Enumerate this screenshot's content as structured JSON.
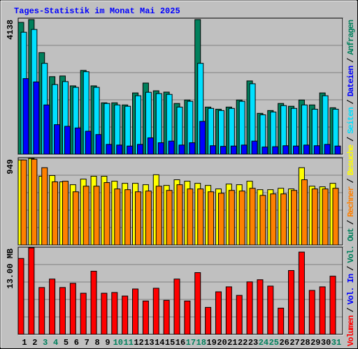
{
  "title": "Tages-Statistik im Monat Mai 2025",
  "separator": "/",
  "categories": [
    "1",
    "2",
    "3",
    "4",
    "5",
    "6",
    "7",
    "8",
    "9",
    "10",
    "11",
    "12",
    "13",
    "14",
    "15",
    "16",
    "17",
    "18",
    "19",
    "20",
    "21",
    "22",
    "23",
    "24",
    "25",
    "26",
    "27",
    "28",
    "29",
    "30",
    "31"
  ],
  "category_colors": [
    "#000000",
    "#000000",
    "#00805c",
    "#00805c",
    "#000000",
    "#000000",
    "#000000",
    "#000000",
    "#000000",
    "#00805c",
    "#00805c",
    "#000000",
    "#000000",
    "#000000",
    "#000000",
    "#000000",
    "#00805c",
    "#00805c",
    "#000000",
    "#000000",
    "#000000",
    "#000000",
    "#000000",
    "#00805c",
    "#00805c",
    "#000000",
    "#000000",
    "#000000",
    "#000000",
    "#000000",
    "#00805c"
  ],
  "chart_data": [
    {
      "type": "bar",
      "ylim": [
        0,
        4138
      ],
      "yticks": [
        4138
      ],
      "grid": true,
      "series": [
        {
          "name": "Anfragen",
          "color": "#00805c",
          "values": [
            4010,
            4095,
            3090,
            2360,
            2380,
            2080,
            2550,
            2080,
            1565,
            1565,
            1500,
            1865,
            2165,
            1930,
            1890,
            1545,
            1650,
            4095,
            1435,
            1370,
            1435,
            1650,
            2230,
            1245,
            1330,
            1545,
            1460,
            1650,
            1500,
            1865,
            1415
          ]
        },
        {
          "name": "Seiten",
          "color": "#00e0ff",
          "values": [
            3710,
            3795,
            2765,
            2120,
            2210,
            2035,
            2510,
            2035,
            1545,
            1500,
            1460,
            1780,
            1885,
            1845,
            1820,
            1435,
            1610,
            2765,
            1395,
            1330,
            1395,
            1610,
            2145,
            1200,
            1285,
            1480,
            1395,
            1500,
            1370,
            1780,
            1370
          ]
        },
        {
          "name": "Dateien",
          "color": "#0000ff",
          "values": [
            2300,
            2200,
            1500,
            900,
            850,
            800,
            700,
            600,
            300,
            280,
            250,
            300,
            500,
            350,
            400,
            280,
            350,
            1000,
            260,
            240,
            250,
            280,
            400,
            220,
            230,
            260,
            250,
            280,
            260,
            300,
            250
          ]
        }
      ],
      "legend_order": [
        1,
        2,
        0
      ]
    },
    {
      "type": "bar",
      "ylim": [
        0,
        949
      ],
      "yticks": [
        949
      ],
      "grid": true,
      "series": [
        {
          "name": "Besuche",
          "color": "#ffff00",
          "values": [
            925,
            941,
            748,
            756,
            687,
            656,
            717,
            748,
            748,
            694,
            671,
            671,
            656,
            764,
            648,
            710,
            694,
            671,
            648,
            610,
            663,
            656,
            694,
            602,
            602,
            617,
            610,
            841,
            640,
            633,
            671
          ]
        },
        {
          "name": "Rechner",
          "color": "#ff8000",
          "values": [
            925,
            933,
            841,
            687,
            694,
            579,
            640,
            640,
            679,
            610,
            602,
            579,
            587,
            640,
            594,
            656,
            610,
            610,
            579,
            563,
            594,
            587,
            617,
            540,
            556,
            556,
            594,
            710,
            610,
            610,
            617
          ]
        }
      ],
      "legend_order": [
        1,
        0
      ]
    },
    {
      "type": "bar",
      "ylim": [
        0,
        13
      ],
      "yticks": [
        {
          "value": 13,
          "label": "13.00 MB"
        }
      ],
      "grid": true,
      "series": [
        {
          "name": "Volumen",
          "color": "#ff0000",
          "values": [
            11.31,
            12.89,
            6.98,
            8.24,
            6.98,
            7.61,
            6.13,
            9.41,
            6.13,
            6.24,
            5.71,
            6.76,
            4.97,
            6.87,
            5.07,
            8.24,
            4.97,
            9.2,
            4.02,
            6.34,
            7.08,
            5.81,
            7.82,
            8.14,
            7.19,
            3.91,
            9.51,
            12.26,
            6.55,
            7.08,
            8.67
          ]
        }
      ],
      "extra_legend": [
        {
          "name": "Vol. In",
          "color": "#0000ff"
        },
        {
          "name": "Vol. Out",
          "color": "#00805c"
        }
      ],
      "legend_order": [
        0
      ]
    }
  ]
}
